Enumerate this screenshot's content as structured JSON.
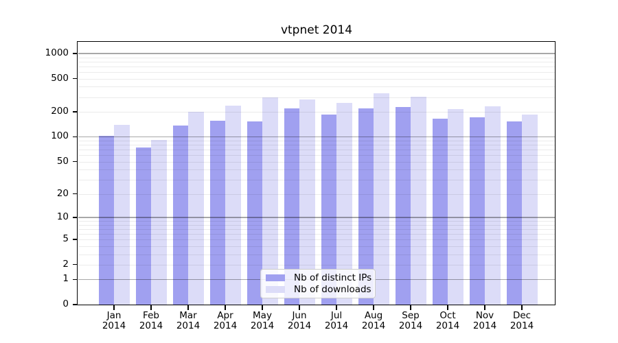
{
  "chart_data": {
    "type": "bar",
    "title": "vtpnet 2014",
    "categories": [
      "Jan 2014",
      "Feb 2014",
      "Mar 2014",
      "Apr 2014",
      "May 2014",
      "Jun 2014",
      "Jul 2014",
      "Aug 2014",
      "Sep 2014",
      "Oct 2014",
      "Nov 2014",
      "Dec 2014"
    ],
    "series": [
      {
        "name": "Nb of distinct IPs",
        "color": "#a0a0f0",
        "values": [
          102,
          74,
          136,
          157,
          152,
          220,
          186,
          220,
          229,
          166,
          173,
          152
        ]
      },
      {
        "name": "Nb of downloads",
        "color": "#dcdcf8",
        "values": [
          140,
          91,
          200,
          236,
          300,
          282,
          256,
          336,
          306,
          214,
          232,
          187
        ]
      }
    ],
    "y_axis": {
      "scale": "log1p",
      "ticks": [
        0,
        1,
        2,
        5,
        10,
        20,
        50,
        100,
        200,
        500,
        1000
      ],
      "major_gridline_values": [
        1,
        10,
        100,
        1000
      ],
      "range_max": 1370
    },
    "grid": "on",
    "legend_position": "lower center",
    "colors": {
      "axis": "#000000",
      "major_grid": "rgba(0,0,0,0.34)",
      "minor_grid": "rgba(0,0,0,0.08)",
      "background": "#ffffff"
    }
  }
}
